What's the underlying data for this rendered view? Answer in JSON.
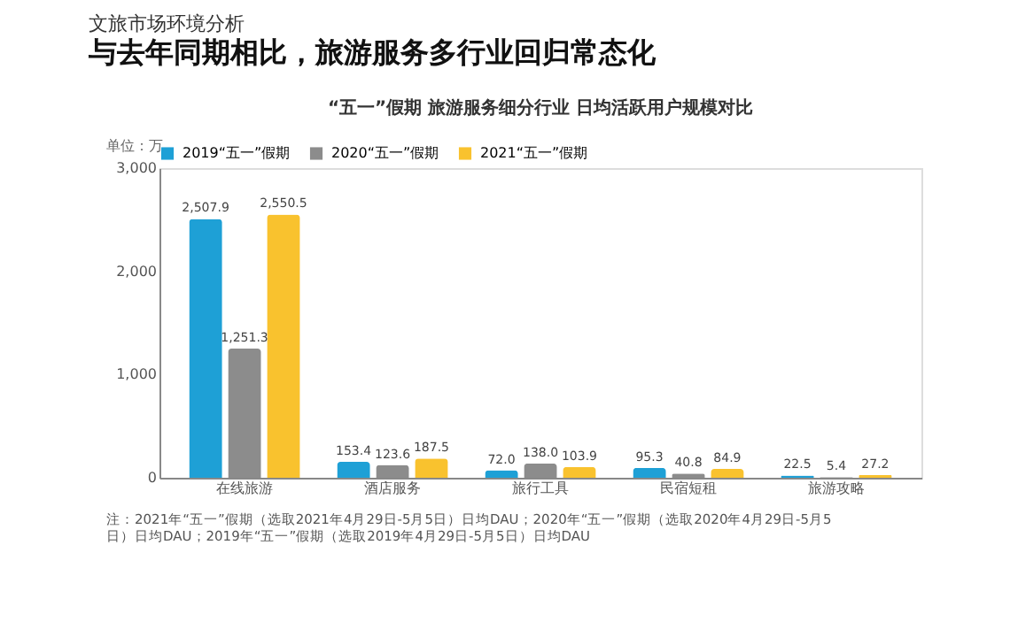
{
  "chart_data": {
    "type": "bar",
    "title": "“五一”假期 旅游服务细分行业 日均活跃用户规模对比",
    "ylabel": "单位：万",
    "annotations": [
      "文旅市场环境分析",
      "与去年同期相比，旅游服务多行业回归常态化",
      "注：2021年“五一”假期（选取2021年4月29日-5月5日）日均DAU；2020年“五一”假期（选取2020年4月29日-5月5日）日均DAU；2019年“五一”假期（选取2019年4月29日-5月5日）日均DAU"
    ],
    "categories": [
      "在线旅游",
      "酒店服务",
      "旅行工具",
      "民宿短租",
      "旅游攻略"
    ],
    "series": [
      {
        "name": "2019“五一”假期",
        "color": "#1ea0d6",
        "values": [
          2507.9,
          153.4,
          72.0,
          95.3,
          22.5
        ],
        "value_labels": [
          "2,507.9",
          "153.4",
          "72.0",
          "95.3",
          "22.5"
        ]
      },
      {
        "name": "2020“五一”假期",
        "color": "#8c8c8c",
        "values": [
          1251.3,
          123.6,
          138.0,
          40.8,
          5.4
        ],
        "value_labels": [
          "1,251.3",
          "123.6",
          "138.0",
          "40.8",
          "5.4"
        ]
      },
      {
        "name": "2021“五一”假期",
        "color": "#f9c22e",
        "values": [
          2550.5,
          187.5,
          103.9,
          84.9,
          27.2
        ],
        "value_labels": [
          "2,550.5",
          "187.5",
          "103.9",
          "84.9",
          "27.2"
        ]
      }
    ],
    "ylim": [
      0,
      3000
    ],
    "yticks": [
      0,
      {
        "value": 1000,
        "label": "1,000"
      },
      {
        "value": 2000,
        "label": "2,000"
      },
      {
        "value": 3000,
        "label": "3,000"
      }
    ],
    "grid": false,
    "legend": "top"
  }
}
